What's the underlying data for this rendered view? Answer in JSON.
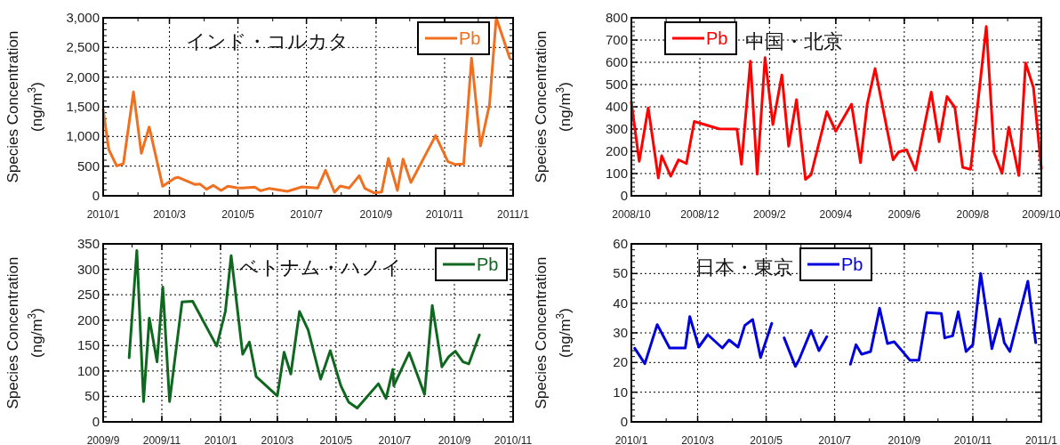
{
  "chart_data": [
    {
      "type": "line",
      "title": "インド・コルカタ",
      "ylabel": "Species Concentration\n(ng/m$^{3}$)",
      "xlim": [
        "2010-01",
        "2011-01"
      ],
      "xticks": [
        {
          "value": "2010-01",
          "label": "2010/1"
        },
        {
          "value": "2010-03",
          "label": "2010/3"
        },
        {
          "value": "2010-05",
          "label": "2010/5"
        },
        {
          "value": "2010-07",
          "label": "2010/7"
        },
        {
          "value": "2010-09",
          "label": "2010/9"
        },
        {
          "value": "2010-11",
          "label": "2010/11"
        },
        {
          "value": "2011-01",
          "label": "2011/1"
        }
      ],
      "ylim": [
        0,
        3000
      ],
      "yticks": [
        0,
        500,
        {
          "value": 1000,
          "label": "1,000"
        },
        {
          "value": 1500,
          "label": "1,500"
        },
        {
          "value": 2000,
          "label": "2,000"
        },
        {
          "value": 2500,
          "label": "2,500"
        },
        {
          "value": 3000,
          "label": "3,000"
        }
      ],
      "grid": true,
      "legend": "top right",
      "line_style": "solid",
      "x": [
        "2010-01-01",
        "2010-01-06",
        "2010-01-13",
        "2010-01-19",
        "2010-01-28",
        "2010-02-04",
        "2010-02-11",
        "2010-02-23",
        "2010-03-06",
        "2010-03-09",
        "2010-03-24",
        "2010-03-28",
        "2010-04-03",
        "2010-04-09",
        "2010-04-16",
        "2010-04-22",
        "2010-04-30",
        "2010-05-05",
        "2010-05-16",
        "2010-05-21",
        "2010-05-29",
        "2010-06-14",
        "2010-06-27",
        "2010-07-11",
        "2010-07-18",
        "2010-07-26",
        "2010-07-31",
        "2010-08-08",
        "2010-08-17",
        "2010-08-22",
        "2010-08-30",
        "2010-09-06",
        "2010-09-12",
        "2010-09-20",
        "2010-09-25",
        "2010-10-02",
        "2010-10-24",
        "2010-11-04",
        "2010-11-10",
        "2010-11-18",
        "2010-11-25",
        "2010-12-03",
        "2010-12-11",
        "2010-12-17",
        "2010-12-29"
      ],
      "series": [
        {
          "name": "Pb",
          "color": "#f07020",
          "values": [
            1450,
            780,
            505,
            540,
            1750,
            715,
            1160,
            160,
            300,
            310,
            190,
            200,
            110,
            175,
            90,
            160,
            135,
            130,
            145,
            85,
            125,
            75,
            150,
            130,
            430,
            60,
            165,
            130,
            340,
            125,
            50,
            65,
            630,
            90,
            620,
            225,
            1015,
            575,
            530,
            535,
            2320,
            840,
            1540,
            3000,
            2320
          ]
        }
      ]
    },
    {
      "type": "line",
      "title": "中国・北京",
      "ylabel": "Species Concentration\n(ng/m$^{3}$)",
      "xlim": [
        "2008-10",
        "2009-10"
      ],
      "xticks": [
        {
          "value": "2008-10",
          "label": "2008/10"
        },
        {
          "value": "2008-12",
          "label": "2008/12"
        },
        {
          "value": "2009-02",
          "label": "2009/2"
        },
        {
          "value": "2009-04",
          "label": "2009/4"
        },
        {
          "value": "2009-06",
          "label": "2009/6"
        },
        {
          "value": "2009-08",
          "label": "2009/8"
        },
        {
          "value": "2009-10",
          "label": "2009/10"
        }
      ],
      "ylim": [
        0,
        800
      ],
      "yticks": [
        0,
        100,
        200,
        300,
        400,
        500,
        600,
        700,
        800
      ],
      "grid": true,
      "legend": "top left",
      "line_style": "solid",
      "x": [
        "2008-10-01",
        "2008-10-08",
        "2008-10-16",
        "2008-10-25",
        "2008-10-28",
        "2008-11-05",
        "2008-11-12",
        "2008-11-19",
        "2008-11-26",
        "2008-12-18",
        "2009-01-03",
        "2009-01-07",
        "2009-01-15",
        "2009-01-21",
        "2009-01-28",
        "2009-02-04",
        "2009-02-12",
        "2009-02-18",
        "2009-02-25",
        "2009-03-05",
        "2009-03-10",
        "2009-03-24",
        "2009-04-01",
        "2009-04-15",
        "2009-04-23",
        "2009-04-29",
        "2009-05-06",
        "2009-05-22",
        "2009-05-27",
        "2009-06-03",
        "2009-06-11",
        "2009-06-25",
        "2009-07-02",
        "2009-07-09",
        "2009-07-16",
        "2009-07-23",
        "2009-07-30",
        "2009-08-13",
        "2009-08-20",
        "2009-08-27",
        "2009-09-02",
        "2009-09-11",
        "2009-09-17",
        "2009-09-24",
        "2009-10-01"
      ],
      "series": [
        {
          "name": "Pb",
          "color": "#ff0000",
          "values": [
            420,
            155,
            395,
            80,
            180,
            88,
            162,
            145,
            334,
            301,
            300,
            142,
            605,
            97,
            621,
            320,
            543,
            223,
            432,
            74,
            95,
            378,
            290,
            412,
            149,
            412,
            572,
            162,
            197,
            207,
            115,
            466,
            243,
            446,
            397,
            128,
            119,
            761,
            193,
            101,
            308,
            91,
            597,
            486,
            122
          ]
        }
      ]
    },
    {
      "type": "line",
      "title": "ベトナム・ハノイ",
      "ylabel": "Species Concentration\n(ng/m$^{3}$)",
      "xlim": [
        "2009-09",
        "2010-11"
      ],
      "xticks": [
        {
          "value": "2009-09",
          "label": "2009/9"
        },
        {
          "value": "2009-11",
          "label": "2009/11"
        },
        {
          "value": "2010-01",
          "label": "2010/1"
        },
        {
          "value": "2010-03",
          "label": "2010/3"
        },
        {
          "value": "2010-05",
          "label": "2010/5"
        },
        {
          "value": "2010-07",
          "label": "2010/7"
        },
        {
          "value": "2010-09",
          "label": "2010/9"
        },
        {
          "value": "2010-11",
          "label": "2010/11"
        }
      ],
      "ylim": [
        0,
        350
      ],
      "yticks": [
        0,
        50,
        100,
        150,
        200,
        250,
        300,
        350
      ],
      "grid": true,
      "legend": "top right",
      "line_style": "solid",
      "x": [
        "2009-09-28",
        "2009-10-06",
        "2009-10-13",
        "2009-10-19",
        "2009-10-27",
        "2009-11-02",
        "2009-11-09",
        "2009-11-22",
        "2009-12-03",
        "2009-12-28",
        "2010-01-06",
        "2010-01-12",
        "2010-01-24",
        "2010-01-31",
        "2010-02-07",
        "2010-03-01",
        "2010-03-08",
        "2010-03-15",
        "2010-03-24",
        "2010-04-02",
        "2010-04-15",
        "2010-04-25",
        "2010-05-06",
        "2010-05-14",
        "2010-05-23",
        "2010-06-14",
        "2010-06-22",
        "2010-06-29",
        "2010-06-30",
        "2010-07-16",
        "2010-08-01",
        "2010-08-09",
        "2010-08-19",
        "2010-08-26",
        "2010-09-02",
        "2010-09-10",
        "2010-09-16",
        "2010-09-27"
      ],
      "series": [
        {
          "name": "Pb",
          "color": "#106820",
          "values": [
            126,
            337,
            40,
            204,
            118,
            265,
            40,
            236,
            237,
            149,
            217,
            327,
            133,
            157,
            89,
            51,
            137,
            94,
            217,
            181,
            84,
            140,
            71,
            39,
            27,
            75,
            46,
            103,
            71,
            136,
            54,
            229,
            108,
            128,
            139,
            118,
            114,
            171
          ]
        }
      ]
    },
    {
      "type": "line",
      "title": "日本・東京",
      "ylabel": "Species Concentration\n(ng/m$^{3}$)",
      "xlim": [
        "2010-01",
        "2011-01"
      ],
      "xticks": [
        {
          "value": "2010-01",
          "label": "2010/1"
        },
        {
          "value": "2010-03",
          "label": "2010/3"
        },
        {
          "value": "2010-05",
          "label": "2010/5"
        },
        {
          "value": "2010-07",
          "label": "2010/7"
        },
        {
          "value": "2010-09",
          "label": "2010/9"
        },
        {
          "value": "2010-11",
          "label": "2010/11"
        },
        {
          "value": "2011-01",
          "label": "2011/1"
        }
      ],
      "ylim": [
        0,
        60
      ],
      "yticks": [
        0,
        10,
        20,
        30,
        40,
        50,
        60
      ],
      "grid": true,
      "legend": "top",
      "line_style": "solid",
      "x": [
        "2010-01-04",
        "2010-01-13",
        "2010-01-24",
        "2010-02-04",
        "2010-02-18",
        "2010-02-22",
        "2010-03-02",
        "2010-03-10",
        "2010-03-23",
        "2010-03-29",
        "2010-04-06",
        "2010-04-12",
        "2010-04-19",
        "2010-04-26",
        "2010-05-06",
        "2010-05-12",
        "2010-05-17",
        "2010-05-27",
        "2010-05-30",
        "2010-06-10",
        "2010-06-17",
        "2010-06-24",
        "2010-07-05",
        "2010-07-15",
        "2010-07-20",
        "2010-07-25",
        "2010-08-02",
        "2010-08-10",
        "2010-08-17",
        "2010-08-23",
        "2010-09-06",
        "2010-09-14",
        "2010-09-21",
        "2010-10-04",
        "2010-10-07",
        "2010-10-14",
        "2010-10-19",
        "2010-10-26",
        "2010-11-01",
        "2010-11-08",
        "2010-11-18",
        "2010-11-25",
        "2010-11-29",
        "2010-12-04",
        "2010-12-20",
        "2010-12-27"
      ],
      "series": [
        {
          "name": "Pb",
          "color": "#0000dd",
          "values": [
            24.8,
            19.6,
            32.8,
            24.9,
            24.9,
            35.5,
            25.2,
            29.4,
            24.9,
            27.6,
            25.2,
            32.5,
            34.5,
            21.7,
            33.2,
            null,
            28.3,
            18.7,
            20.7,
            30.8,
            24.0,
            28.7,
            null,
            19.4,
            26.0,
            22.8,
            23.7,
            38.3,
            26.4,
            27.0,
            20.8,
            20.8,
            36.8,
            36.5,
            28.3,
            29.0,
            37.1,
            23.7,
            26.0,
            50.0,
            24.7,
            34.7,
            26.7,
            23.7,
            47.4,
            26.7
          ]
        }
      ]
    }
  ]
}
